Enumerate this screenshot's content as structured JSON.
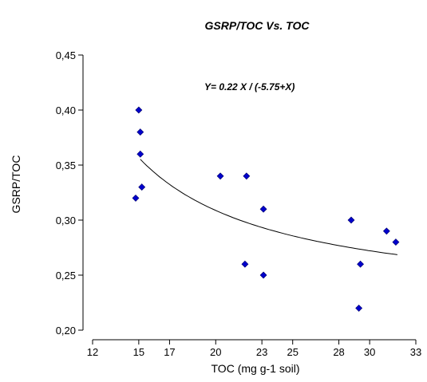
{
  "chart_data": {
    "type": "scatter",
    "title": "GSRP/TOC Vs. TOC",
    "xlabel": "TOC (mg g-1 soil)",
    "ylabel": "GSRP/TOC",
    "annotation": "Y= 0.22 X / (-5.75+X)",
    "xlim": [
      12,
      33
    ],
    "ylim": [
      0.2,
      0.45
    ],
    "x_ticks": [
      12,
      15,
      17,
      20,
      23,
      25,
      28,
      30,
      33
    ],
    "x_tick_labels": [
      "12",
      "15",
      "17",
      "20",
      "23",
      "25",
      "28",
      "30",
      "33"
    ],
    "y_ticks": [
      0.2,
      0.25,
      0.3,
      0.35,
      0.4,
      0.45
    ],
    "y_tick_labels": [
      "0,20",
      "0,25",
      "0,30",
      "0,35",
      "0,40",
      "0,45"
    ],
    "marker_color": "#0000cc",
    "line_color": "#000000",
    "grid": false,
    "series": [
      {
        "x": [
          14.8,
          15.0,
          15.1,
          15.1,
          15.2,
          20.3,
          21.9,
          22.0,
          23.1,
          23.1,
          28.8,
          29.3,
          29.4,
          31.1,
          31.7
        ],
        "y": [
          0.32,
          0.4,
          0.36,
          0.38,
          0.33,
          0.34,
          0.26,
          0.34,
          0.31,
          0.25,
          0.3,
          0.22,
          0.26,
          0.29,
          0.28
        ]
      }
    ],
    "fit": {
      "a": 0.22,
      "b": -5.75,
      "x_range": [
        15.1,
        31.8
      ]
    }
  }
}
